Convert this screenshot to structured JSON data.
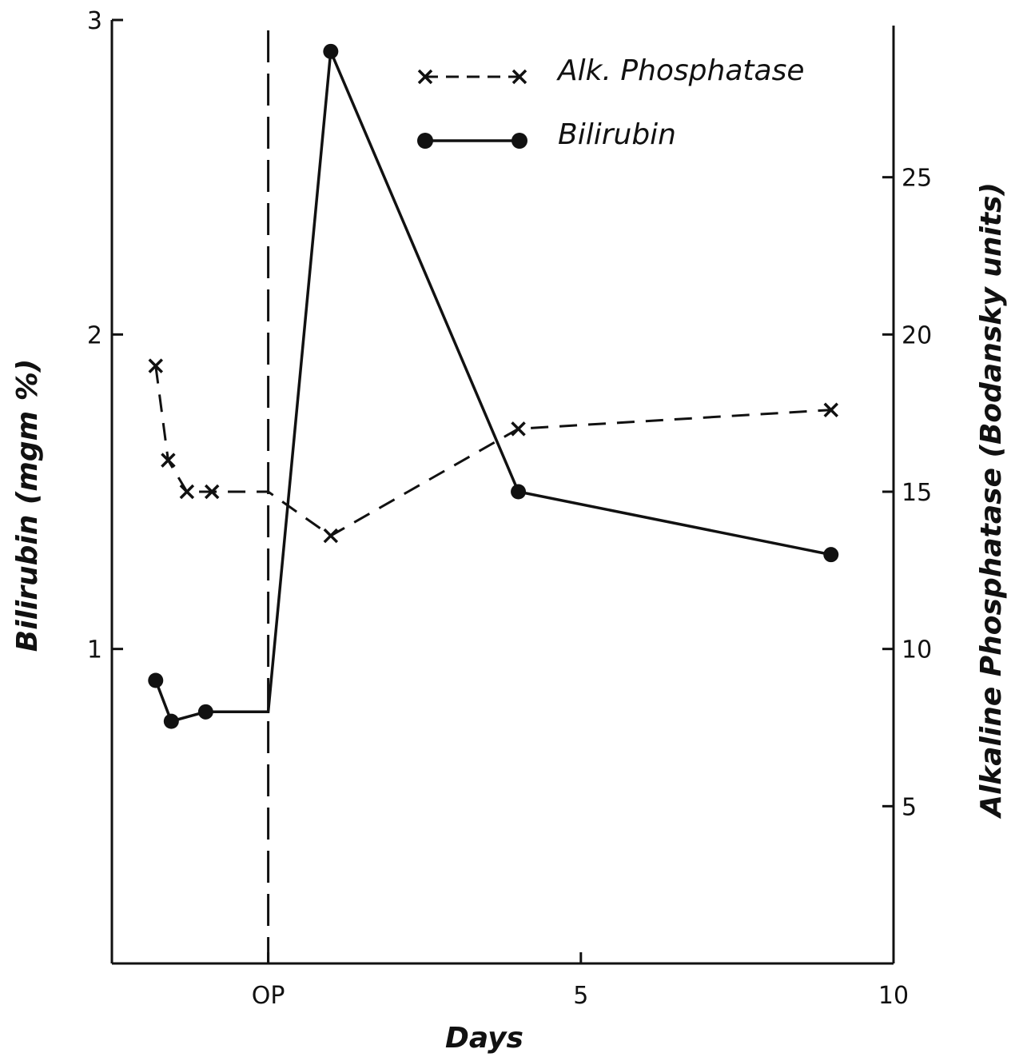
{
  "chart_data": {
    "type": "line",
    "xlabel": "Days",
    "ylabel_left": "Bilirubin (mgm %)",
    "ylabel_right": "Alkaline Phosphatase (Bodansky units)",
    "x_range": [
      -2.5,
      10
    ],
    "y_left_range": [
      0,
      3
    ],
    "y_right_range": [
      0,
      30
    ],
    "x_ticks": [
      {
        "value": 0,
        "label": "OP"
      },
      {
        "value": 5,
        "label": "5"
      },
      {
        "value": 10,
        "label": "10"
      }
    ],
    "y_left_ticks": [
      {
        "value": 1,
        "label": "1"
      },
      {
        "value": 2,
        "label": "2"
      },
      {
        "value": 3,
        "label": "3"
      }
    ],
    "y_right_ticks": [
      {
        "value": 5,
        "label": "5"
      },
      {
        "value": 10,
        "label": "10"
      },
      {
        "value": 15,
        "label": "15"
      },
      {
        "value": 20,
        "label": "20"
      },
      {
        "value": 25,
        "label": "25"
      }
    ],
    "marker_line": {
      "x": 0,
      "label": "OP"
    },
    "legend_position": "top-right",
    "series": [
      {
        "name": "Alk. Phosphatase",
        "axis": "right",
        "style": "dashed-x",
        "points": [
          [
            -1.8,
            19
          ],
          [
            -1.6,
            16
          ],
          [
            -1.3,
            15
          ],
          [
            -0.9,
            15
          ],
          [
            0,
            15
          ],
          [
            1.0,
            13.6
          ],
          [
            4.0,
            17
          ],
          [
            9.0,
            17.6
          ]
        ]
      },
      {
        "name": "Bilirubin",
        "axis": "left",
        "style": "solid-dot",
        "points": [
          [
            -1.8,
            0.9
          ],
          [
            -1.55,
            0.77
          ],
          [
            -1.0,
            0.8
          ],
          [
            0,
            0.8
          ],
          [
            1.0,
            2.9
          ],
          [
            4.0,
            1.5
          ],
          [
            9.0,
            1.3
          ]
        ]
      }
    ]
  }
}
